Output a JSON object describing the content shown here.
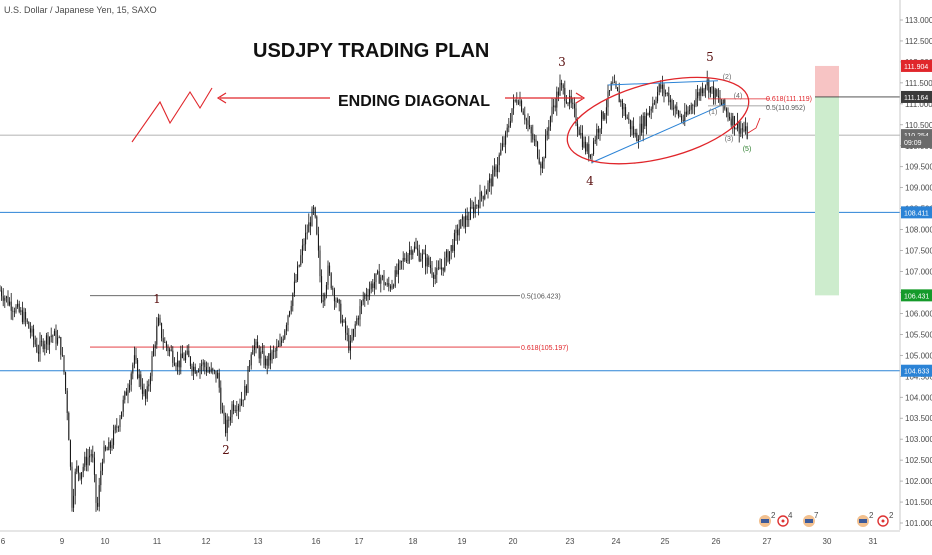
{
  "symbol_header": "U.S. Dollar / Japanese Yen, 15, SAXO",
  "annotations": {
    "title": "USDJPY TRADING PLAN",
    "diagonal_label": "ENDING DIAGONAL",
    "waves": [
      "1",
      "2",
      "3",
      "4",
      "5"
    ],
    "subwaves": [
      "(1)",
      "(2)",
      "(3)",
      "(4)",
      "(5)"
    ],
    "fib_mid": {
      "text": "0.5(106.423)",
      "price": 106.423
    },
    "fib_low": {
      "text": "0.618(105.197)",
      "price": 105.197
    },
    "fib_top_618": {
      "text": "0.618(111.119)",
      "price": 111.119
    },
    "fib_top_5": {
      "text": "0.5(110.952)",
      "price": 110.952
    }
  },
  "price_badges": [
    {
      "text": "111.904",
      "price": 111.904,
      "color": "#e0262b"
    },
    {
      "text": "111.164",
      "price": 111.164,
      "color": "#3b3b3b"
    },
    {
      "text": "110.254",
      "price": 110.254,
      "color": "#6b6b6b"
    },
    {
      "text": "09:09",
      "price": 110.09,
      "color": "#6b6b6b"
    },
    {
      "text": "108.411",
      "price": 108.411,
      "color": "#2b83d6"
    },
    {
      "text": "106.431",
      "price": 106.431,
      "color": "#159a2a"
    },
    {
      "text": "104.633",
      "price": 104.633,
      "color": "#2b83d6"
    }
  ],
  "events": {
    "us_count_a": "2",
    "other_count_a": "4",
    "us_count_b": "7",
    "us_count_c": "2",
    "other_count_c": "2"
  },
  "chart_data": {
    "type": "candlestick",
    "timeframe": "15",
    "xlabel": "",
    "ylabel": "",
    "x_ticks": [
      "6",
      "9",
      "10",
      "11",
      "12",
      "13",
      "16",
      "17",
      "18",
      "19",
      "20",
      "23",
      "24",
      "25",
      "26",
      "27",
      "30",
      "31"
    ],
    "y_ticks": [
      101.0,
      101.5,
      102.0,
      102.5,
      103.0,
      103.5,
      104.0,
      104.5,
      105.0,
      105.5,
      106.0,
      106.5,
      107.0,
      107.5,
      108.0,
      108.5,
      109.0,
      109.5,
      110.0,
      110.5,
      111.0,
      111.5,
      112.0,
      112.5,
      113.0
    ],
    "y_tick_labels": [
      "101.000",
      "101.500",
      "102.000",
      "102.500",
      "103.000",
      "103.500",
      "104.000",
      "104.500",
      "105.000",
      "105.500",
      "106.000",
      "106.500",
      "107.000",
      "107.500",
      "108.000",
      "108.500",
      "109.000",
      "109.500",
      "110.000",
      "110.500",
      "111.000",
      "111.500",
      "112.000",
      "112.500",
      "113.000"
    ],
    "ylim": [
      100.85,
      113.25
    ],
    "grid": false,
    "price_path": [
      {
        "x": 0,
        "y": 106.55
      },
      {
        "x": 8,
        "y": 106.3
      },
      {
        "x": 16,
        "y": 106.1
      },
      {
        "x": 24,
        "y": 105.9
      },
      {
        "x": 30,
        "y": 105.6
      },
      {
        "x": 38,
        "y": 105.1
      },
      {
        "x": 44,
        "y": 105.35
      },
      {
        "x": 52,
        "y": 105.5
      },
      {
        "x": 60,
        "y": 105.3
      },
      {
        "x": 64,
        "y": 104.6
      },
      {
        "x": 68,
        "y": 103.5
      },
      {
        "x": 72,
        "y": 101.5
      },
      {
        "x": 76,
        "y": 102.3
      },
      {
        "x": 80,
        "y": 102.2
      },
      {
        "x": 86,
        "y": 102.5
      },
      {
        "x": 92,
        "y": 102.7
      },
      {
        "x": 97,
        "y": 101.2
      },
      {
        "x": 102,
        "y": 102.6
      },
      {
        "x": 110,
        "y": 102.8
      },
      {
        "x": 118,
        "y": 103.4
      },
      {
        "x": 126,
        "y": 104.1
      },
      {
        "x": 134,
        "y": 104.9
      },
      {
        "x": 140,
        "y": 104.4
      },
      {
        "x": 146,
        "y": 103.9
      },
      {
        "x": 152,
        "y": 104.9
      },
      {
        "x": 158,
        "y": 105.8
      },
      {
        "x": 164,
        "y": 105.3
      },
      {
        "x": 170,
        "y": 105.1
      },
      {
        "x": 178,
        "y": 104.8
      },
      {
        "x": 186,
        "y": 105.0
      },
      {
        "x": 194,
        "y": 104.7
      },
      {
        "x": 202,
        "y": 104.8
      },
      {
        "x": 210,
        "y": 104.6
      },
      {
        "x": 218,
        "y": 104.5
      },
      {
        "x": 222,
        "y": 103.6
      },
      {
        "x": 226,
        "y": 103.2
      },
      {
        "x": 232,
        "y": 103.8
      },
      {
        "x": 240,
        "y": 103.9
      },
      {
        "x": 246,
        "y": 104.2
      },
      {
        "x": 252,
        "y": 105.3
      },
      {
        "x": 258,
        "y": 105.1
      },
      {
        "x": 266,
        "y": 104.8
      },
      {
        "x": 272,
        "y": 105.0
      },
      {
        "x": 280,
        "y": 105.2
      },
      {
        "x": 288,
        "y": 106.0
      },
      {
        "x": 296,
        "y": 106.8
      },
      {
        "x": 304,
        "y": 107.7
      },
      {
        "x": 310,
        "y": 108.2
      },
      {
        "x": 314,
        "y": 108.45
      },
      {
        "x": 318,
        "y": 107.5
      },
      {
        "x": 322,
        "y": 106.3
      },
      {
        "x": 328,
        "y": 107.0
      },
      {
        "x": 334,
        "y": 106.5
      },
      {
        "x": 340,
        "y": 106.0
      },
      {
        "x": 346,
        "y": 105.5
      },
      {
        "x": 350,
        "y": 105.15
      },
      {
        "x": 356,
        "y": 105.8
      },
      {
        "x": 364,
        "y": 106.4
      },
      {
        "x": 372,
        "y": 106.7
      },
      {
        "x": 380,
        "y": 106.9
      },
      {
        "x": 388,
        "y": 106.6
      },
      {
        "x": 396,
        "y": 106.9
      },
      {
        "x": 404,
        "y": 107.3
      },
      {
        "x": 412,
        "y": 107.6
      },
      {
        "x": 420,
        "y": 107.4
      },
      {
        "x": 428,
        "y": 107.2
      },
      {
        "x": 436,
        "y": 106.9
      },
      {
        "x": 444,
        "y": 107.2
      },
      {
        "x": 452,
        "y": 107.6
      },
      {
        "x": 460,
        "y": 108.1
      },
      {
        "x": 468,
        "y": 108.3
      },
      {
        "x": 476,
        "y": 108.6
      },
      {
        "x": 484,
        "y": 108.9
      },
      {
        "x": 492,
        "y": 109.2
      },
      {
        "x": 500,
        "y": 109.8
      },
      {
        "x": 506,
        "y": 110.2
      },
      {
        "x": 512,
        "y": 110.9
      },
      {
        "x": 518,
        "y": 111.2
      },
      {
        "x": 524,
        "y": 110.8
      },
      {
        "x": 530,
        "y": 110.3
      },
      {
        "x": 536,
        "y": 110.0
      },
      {
        "x": 542,
        "y": 109.5
      },
      {
        "x": 548,
        "y": 110.5
      },
      {
        "x": 554,
        "y": 111.0
      },
      {
        "x": 560,
        "y": 111.4
      },
      {
        "x": 566,
        "y": 111.2
      },
      {
        "x": 572,
        "y": 110.9
      },
      {
        "x": 578,
        "y": 110.5
      },
      {
        "x": 584,
        "y": 110.0
      },
      {
        "x": 590,
        "y": 109.8
      },
      {
        "x": 596,
        "y": 110.3
      },
      {
        "x": 604,
        "y": 110.8
      },
      {
        "x": 612,
        "y": 111.45
      },
      {
        "x": 620,
        "y": 111.1
      },
      {
        "x": 628,
        "y": 110.6
      },
      {
        "x": 636,
        "y": 110.2
      },
      {
        "x": 644,
        "y": 110.6
      },
      {
        "x": 652,
        "y": 111.0
      },
      {
        "x": 660,
        "y": 111.4
      },
      {
        "x": 668,
        "y": 111.2
      },
      {
        "x": 676,
        "y": 110.8
      },
      {
        "x": 684,
        "y": 110.6
      },
      {
        "x": 692,
        "y": 111.0
      },
      {
        "x": 700,
        "y": 111.3
      },
      {
        "x": 706,
        "y": 111.55
      },
      {
        "x": 712,
        "y": 111.3
      },
      {
        "x": 718,
        "y": 111.1
      },
      {
        "x": 724,
        "y": 110.9
      },
      {
        "x": 730,
        "y": 110.7
      },
      {
        "x": 736,
        "y": 110.5
      },
      {
        "x": 742,
        "y": 110.4
      },
      {
        "x": 748,
        "y": 110.254
      }
    ]
  }
}
